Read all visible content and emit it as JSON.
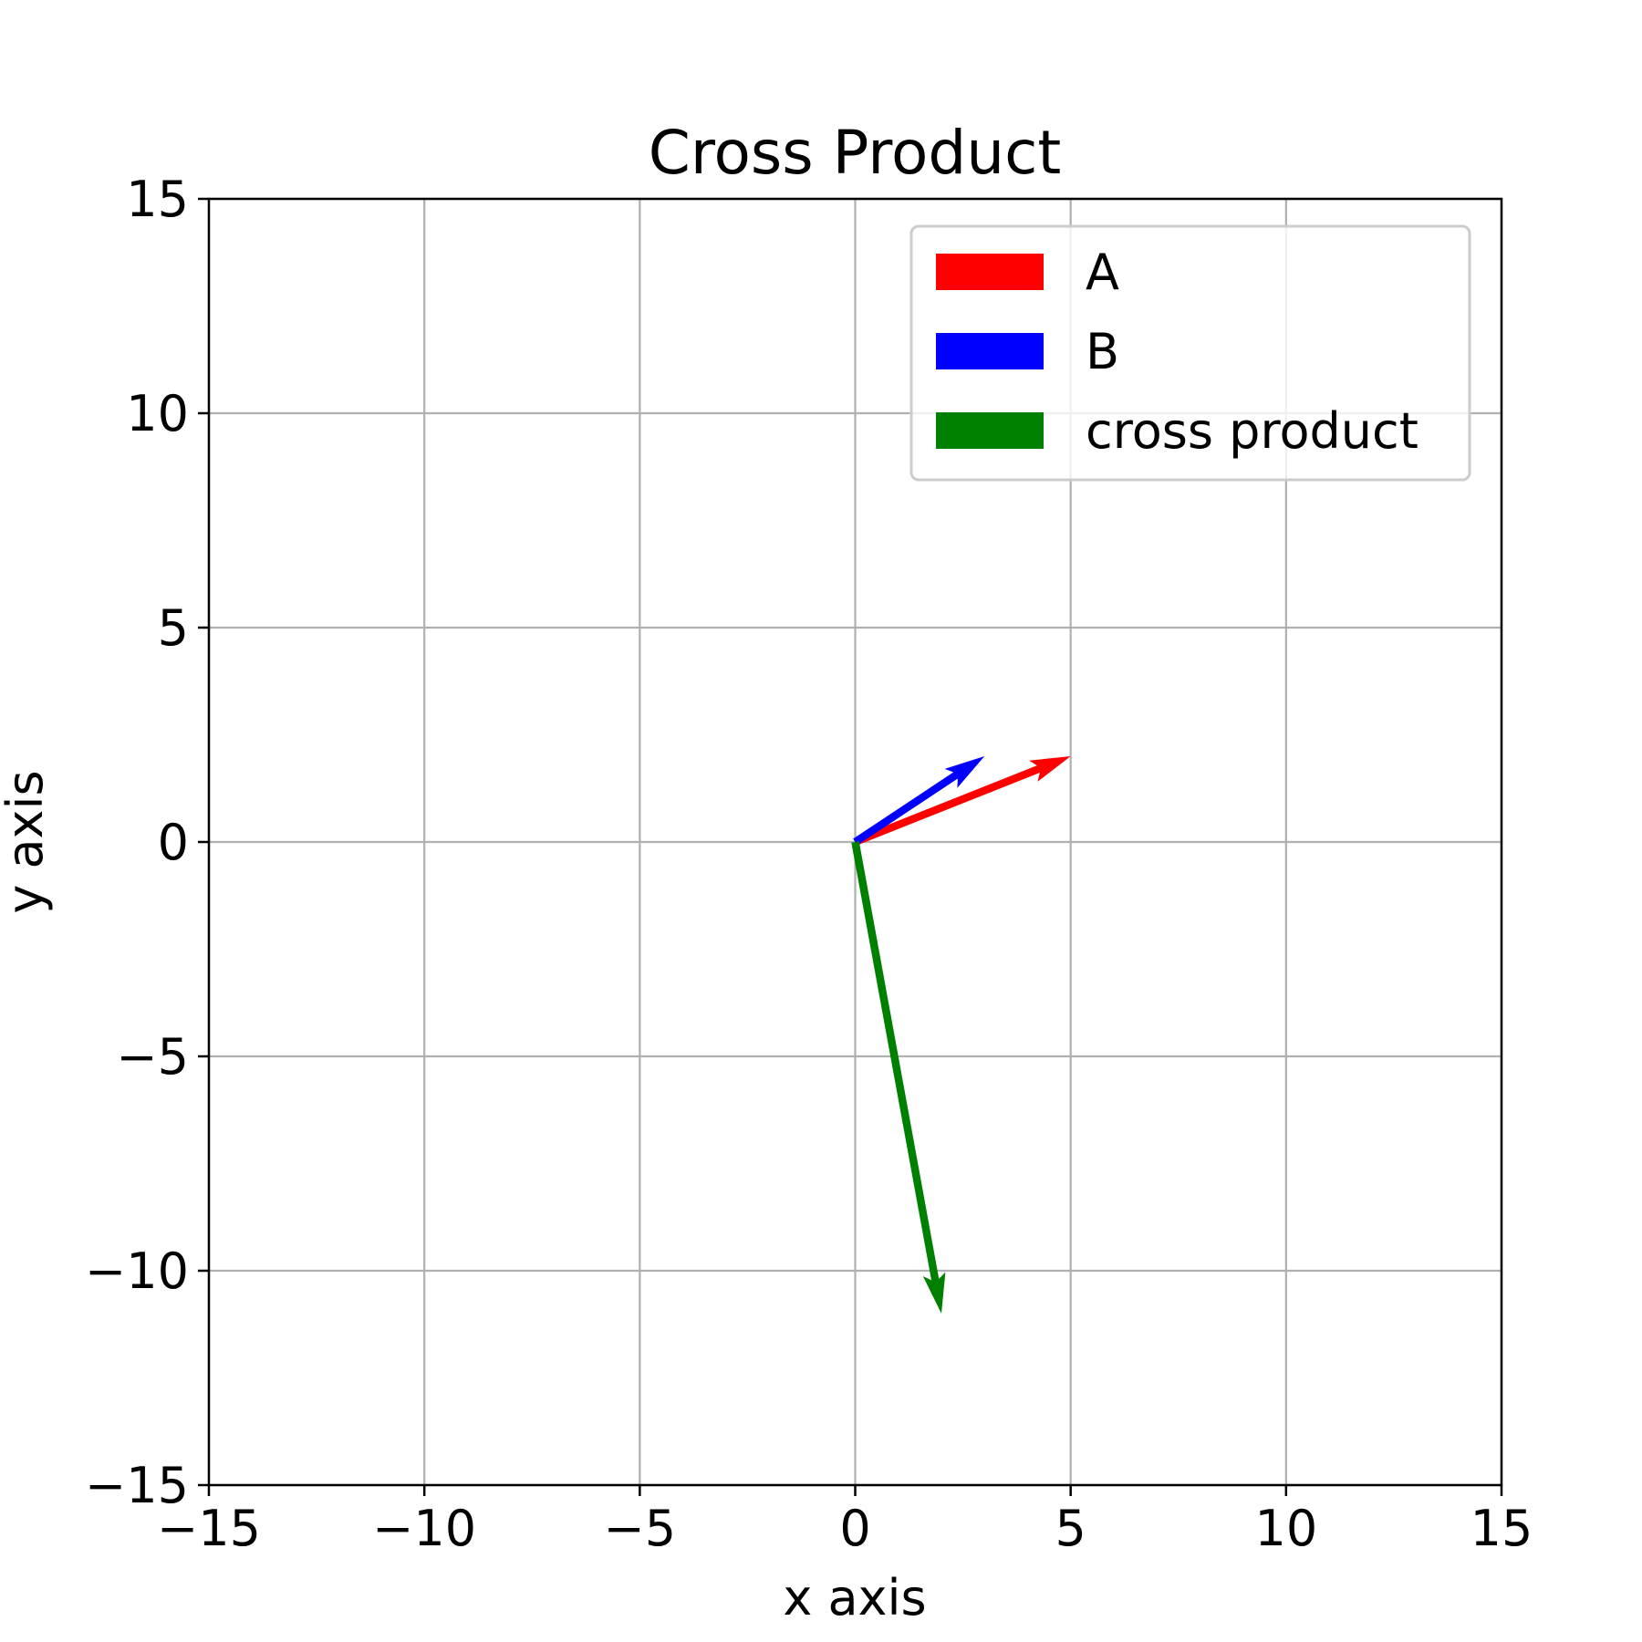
{
  "chart_data": {
    "type": "quiver",
    "title": "Cross Product",
    "xlabel": "x axis",
    "ylabel": "y axis",
    "xlim": [
      -15,
      15
    ],
    "ylim": [
      -15,
      15
    ],
    "xticks": [
      -15,
      -10,
      -5,
      0,
      5,
      10,
      15
    ],
    "yticks": [
      -15,
      -10,
      -5,
      0,
      5,
      10,
      15
    ],
    "xtick_labels": [
      "−15",
      "−10",
      "−5",
      "0",
      "5",
      "10",
      "15"
    ],
    "ytick_labels": [
      "−15",
      "−10",
      "−5",
      "0",
      "5",
      "10",
      "15"
    ],
    "grid": true,
    "legend_position": "upper right",
    "series": [
      {
        "name": "A",
        "color": "#ff0000",
        "origin": [
          0,
          0
        ],
        "vector": [
          5,
          2
        ]
      },
      {
        "name": "B",
        "color": "#0000ff",
        "origin": [
          0,
          0
        ],
        "vector": [
          3,
          2
        ]
      },
      {
        "name": "cross product",
        "color": "#008000",
        "origin": [
          0,
          0
        ],
        "vector": [
          2,
          -11
        ]
      }
    ]
  }
}
